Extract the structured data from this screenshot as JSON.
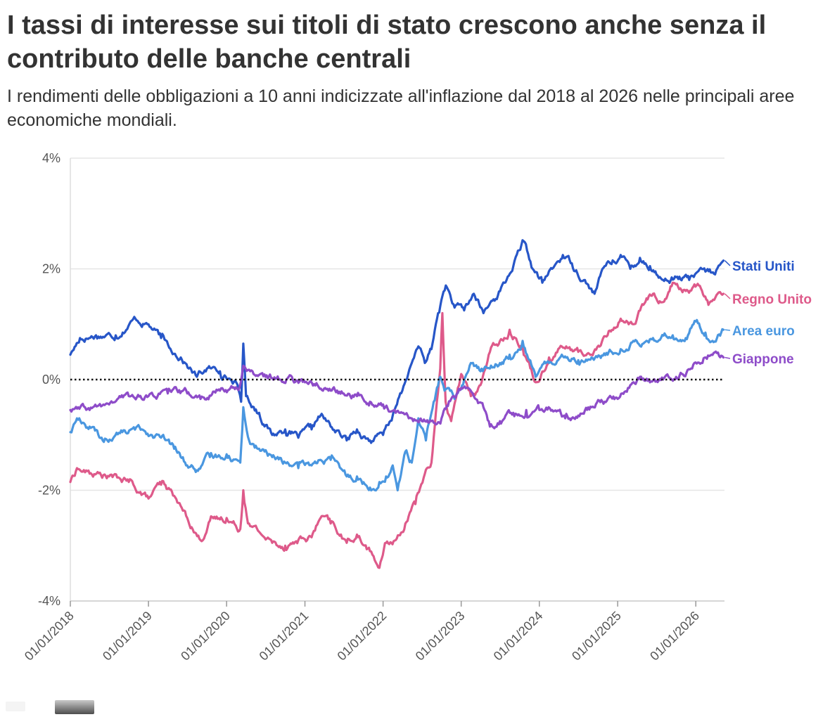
{
  "header": {
    "title": "I tassi di interesse sui titoli di stato crescono anche senza il contributo delle banche centrali",
    "subtitle": "I rendimenti delle obbligazioni a 10 anni indicizzate all'inflazione dal 2018 al 2026 nelle principali aree economiche mondiali."
  },
  "chart_data": {
    "type": "line",
    "title": "I tassi di interesse sui titoli di stato crescono anche senza il contributo delle banche centrali",
    "subtitle": "I rendimenti delle obbligazioni a 10 anni indicizzate all'inflazione dal 2018 al 2026 nelle principali aree economiche mondiali.",
    "xlabel": "",
    "ylabel": "",
    "x_type": "date",
    "xlim": [
      "2018-01-01",
      "2026-05-15"
    ],
    "ylim": [
      -4,
      4
    ],
    "y_ticks": [
      -4,
      -2,
      0,
      2,
      4
    ],
    "y_tick_labels": [
      "-4%",
      "-2%",
      "0%",
      "2%",
      "4%"
    ],
    "x_ticks": [
      "2018-01-01",
      "2019-01-01",
      "2020-01-01",
      "2021-01-01",
      "2022-01-01",
      "2023-01-01",
      "2024-01-01",
      "2025-01-01",
      "2026-01-01"
    ],
    "x_tick_labels": [
      "01/01/2018",
      "01/01/2019",
      "01/01/2020",
      "01/01/2021",
      "01/01/2022",
      "01/01/2023",
      "01/01/2024",
      "01/01/2025",
      "01/01/2026"
    ],
    "grid": true,
    "reference_line": {
      "y": 0,
      "style": "dotted"
    },
    "legend": "direct labels at right end of lines",
    "series": [
      {
        "name": "Stati Uniti",
        "color": "#2756c8",
        "points": [
          [
            "2018-01-01",
            0.45
          ],
          [
            "2018-02-15",
            0.75
          ],
          [
            "2018-05-01",
            0.8
          ],
          [
            "2018-08-01",
            0.8
          ],
          [
            "2018-11-01",
            1.1
          ],
          [
            "2019-01-01",
            1.0
          ],
          [
            "2019-03-01",
            0.75
          ],
          [
            "2019-06-01",
            0.4
          ],
          [
            "2019-08-15",
            0.05
          ],
          [
            "2019-10-01",
            0.2
          ],
          [
            "2019-12-01",
            0.15
          ],
          [
            "2020-02-15",
            -0.05
          ],
          [
            "2020-03-09",
            -0.4
          ],
          [
            "2020-03-19",
            0.65
          ],
          [
            "2020-04-01",
            -0.3
          ],
          [
            "2020-06-01",
            -0.6
          ],
          [
            "2020-08-01",
            -1.0
          ],
          [
            "2020-10-01",
            -0.9
          ],
          [
            "2020-12-01",
            -1.05
          ],
          [
            "2021-02-01",
            -0.9
          ],
          [
            "2021-03-15",
            -0.65
          ],
          [
            "2021-05-01",
            -0.85
          ],
          [
            "2021-07-15",
            -1.1
          ],
          [
            "2021-09-01",
            -0.9
          ],
          [
            "2021-11-01",
            -1.1
          ],
          [
            "2022-01-01",
            -1.0
          ],
          [
            "2022-02-15",
            -0.65
          ],
          [
            "2022-04-01",
            -0.2
          ],
          [
            "2022-05-15",
            0.3
          ],
          [
            "2022-06-15",
            0.6
          ],
          [
            "2022-07-15",
            0.3
          ],
          [
            "2022-08-15",
            0.55
          ],
          [
            "2022-09-15",
            1.2
          ],
          [
            "2022-10-21",
            1.7
          ],
          [
            "2022-12-01",
            1.3
          ],
          [
            "2023-01-15",
            1.25
          ],
          [
            "2023-03-01",
            1.55
          ],
          [
            "2023-04-15",
            1.2
          ],
          [
            "2023-06-01",
            1.45
          ],
          [
            "2023-08-01",
            1.8
          ],
          [
            "2023-10-20",
            2.5
          ],
          [
            "2023-12-01",
            2.0
          ],
          [
            "2024-01-15",
            1.75
          ],
          [
            "2024-03-01",
            2.0
          ],
          [
            "2024-04-20",
            2.25
          ],
          [
            "2024-06-01",
            2.1
          ],
          [
            "2024-08-01",
            1.8
          ],
          [
            "2024-09-15",
            1.55
          ],
          [
            "2024-11-01",
            2.05
          ],
          [
            "2025-01-15",
            2.25
          ],
          [
            "2025-03-01",
            2.0
          ],
          [
            "2025-04-15",
            2.2
          ],
          [
            "2025-06-01",
            2.05
          ],
          [
            "2025-08-01",
            1.8
          ],
          [
            "2025-10-01",
            1.85
          ],
          [
            "2025-12-01",
            1.8
          ],
          [
            "2026-02-15",
            1.95
          ],
          [
            "2026-04-01",
            1.9
          ],
          [
            "2026-05-10",
            2.15
          ]
        ]
      },
      {
        "name": "Regno Unito",
        "color": "#de5a8a",
        "points": [
          [
            "2018-01-01",
            -1.85
          ],
          [
            "2018-02-01",
            -1.6
          ],
          [
            "2018-04-01",
            -1.7
          ],
          [
            "2018-07-01",
            -1.75
          ],
          [
            "2018-10-01",
            -1.85
          ],
          [
            "2019-01-01",
            -2.15
          ],
          [
            "2019-03-01",
            -1.9
          ],
          [
            "2019-05-01",
            -2.1
          ],
          [
            "2019-07-01",
            -2.5
          ],
          [
            "2019-09-01",
            -2.9
          ],
          [
            "2019-10-15",
            -2.55
          ],
          [
            "2020-01-01",
            -2.5
          ],
          [
            "2020-03-05",
            -2.7
          ],
          [
            "2020-03-19",
            -2.0
          ],
          [
            "2020-04-15",
            -2.6
          ],
          [
            "2020-06-01",
            -2.75
          ],
          [
            "2020-08-01",
            -2.95
          ],
          [
            "2020-10-01",
            -3.0
          ],
          [
            "2020-12-01",
            -2.9
          ],
          [
            "2021-02-01",
            -2.85
          ],
          [
            "2021-03-15",
            -2.5
          ],
          [
            "2021-05-01",
            -2.6
          ],
          [
            "2021-07-15",
            -2.95
          ],
          [
            "2021-09-01",
            -2.8
          ],
          [
            "2021-11-01",
            -3.1
          ],
          [
            "2021-12-15",
            -3.4
          ],
          [
            "2022-01-15",
            -2.95
          ],
          [
            "2022-03-01",
            -2.9
          ],
          [
            "2022-04-15",
            -2.6
          ],
          [
            "2022-06-01",
            -2.25
          ],
          [
            "2022-07-15",
            -1.7
          ],
          [
            "2022-08-15",
            -1.5
          ],
          [
            "2022-09-25",
            0.2
          ],
          [
            "2022-10-05",
            1.2
          ],
          [
            "2022-10-20",
            -0.4
          ],
          [
            "2022-11-15",
            -0.75
          ],
          [
            "2023-01-01",
            0.1
          ],
          [
            "2023-02-15",
            -0.3
          ],
          [
            "2023-04-01",
            -0.1
          ],
          [
            "2023-05-15",
            0.5
          ],
          [
            "2023-07-01",
            0.7
          ],
          [
            "2023-08-15",
            0.9
          ],
          [
            "2023-10-15",
            0.6
          ],
          [
            "2023-12-15",
            -0.05
          ],
          [
            "2024-02-15",
            0.4
          ],
          [
            "2024-04-15",
            0.6
          ],
          [
            "2024-07-01",
            0.5
          ],
          [
            "2024-09-01",
            0.45
          ],
          [
            "2024-11-15",
            0.8
          ],
          [
            "2025-01-15",
            1.1
          ],
          [
            "2025-03-15",
            1.0
          ],
          [
            "2025-05-01",
            1.35
          ],
          [
            "2025-06-15",
            1.55
          ],
          [
            "2025-08-01",
            1.4
          ],
          [
            "2025-09-15",
            1.75
          ],
          [
            "2025-11-15",
            1.6
          ],
          [
            "2026-01-15",
            1.7
          ],
          [
            "2026-03-01",
            1.35
          ],
          [
            "2026-05-10",
            1.55
          ]
        ]
      },
      {
        "name": "Area euro",
        "color": "#4a97e0",
        "points": [
          [
            "2018-01-01",
            -0.95
          ],
          [
            "2018-02-01",
            -0.7
          ],
          [
            "2018-04-01",
            -0.85
          ],
          [
            "2018-06-01",
            -1.1
          ],
          [
            "2018-09-01",
            -0.95
          ],
          [
            "2018-12-01",
            -0.9
          ],
          [
            "2019-03-01",
            -1.05
          ],
          [
            "2019-05-01",
            -1.25
          ],
          [
            "2019-07-01",
            -1.55
          ],
          [
            "2019-08-20",
            -1.65
          ],
          [
            "2019-10-15",
            -1.4
          ],
          [
            "2020-01-01",
            -1.35
          ],
          [
            "2020-03-05",
            -1.5
          ],
          [
            "2020-03-19",
            -0.5
          ],
          [
            "2020-04-15",
            -1.1
          ],
          [
            "2020-06-01",
            -1.25
          ],
          [
            "2020-08-01",
            -1.4
          ],
          [
            "2020-10-01",
            -1.5
          ],
          [
            "2020-12-01",
            -1.6
          ],
          [
            "2021-02-01",
            -1.55
          ],
          [
            "2021-03-15",
            -1.45
          ],
          [
            "2021-05-01",
            -1.45
          ],
          [
            "2021-07-15",
            -1.75
          ],
          [
            "2021-09-01",
            -1.75
          ],
          [
            "2021-11-01",
            -1.95
          ],
          [
            "2021-12-15",
            -1.85
          ],
          [
            "2022-01-15",
            -1.75
          ],
          [
            "2022-02-15",
            -1.55
          ],
          [
            "2022-03-10",
            -2.0
          ],
          [
            "2022-04-15",
            -1.3
          ],
          [
            "2022-05-15",
            -1.5
          ],
          [
            "2022-06-15",
            -0.7
          ],
          [
            "2022-07-20",
            -1.1
          ],
          [
            "2022-08-15",
            -0.6
          ],
          [
            "2022-09-25",
            0.05
          ],
          [
            "2022-10-15",
            -0.2
          ],
          [
            "2022-12-01",
            -0.35
          ],
          [
            "2023-01-15",
            0.0
          ],
          [
            "2023-02-15",
            0.3
          ],
          [
            "2023-04-01",
            0.15
          ],
          [
            "2023-05-15",
            0.2
          ],
          [
            "2023-07-01",
            0.3
          ],
          [
            "2023-08-15",
            0.45
          ],
          [
            "2023-10-15",
            0.7
          ],
          [
            "2023-12-15",
            0.05
          ],
          [
            "2024-02-15",
            0.3
          ],
          [
            "2024-04-15",
            0.45
          ],
          [
            "2024-07-01",
            0.35
          ],
          [
            "2024-09-01",
            0.4
          ],
          [
            "2024-11-15",
            0.45
          ],
          [
            "2025-01-15",
            0.55
          ],
          [
            "2025-03-15",
            0.7
          ],
          [
            "2025-05-01",
            0.65
          ],
          [
            "2025-06-15",
            0.75
          ],
          [
            "2025-09-15",
            0.8
          ],
          [
            "2025-11-15",
            0.75
          ],
          [
            "2026-01-01",
            1.05
          ],
          [
            "2026-02-15",
            0.85
          ],
          [
            "2026-03-20",
            0.7
          ],
          [
            "2026-05-10",
            0.9
          ]
        ]
      },
      {
        "name": "Giappone",
        "color": "#8e4cc9",
        "points": [
          [
            "2018-01-01",
            -0.55
          ],
          [
            "2018-04-01",
            -0.55
          ],
          [
            "2018-07-01",
            -0.45
          ],
          [
            "2018-10-01",
            -0.3
          ],
          [
            "2019-01-01",
            -0.3
          ],
          [
            "2019-04-01",
            -0.25
          ],
          [
            "2019-07-01",
            -0.25
          ],
          [
            "2019-09-01",
            -0.35
          ],
          [
            "2019-12-01",
            -0.2
          ],
          [
            "2020-03-01",
            -0.15
          ],
          [
            "2020-03-19",
            0.25
          ],
          [
            "2020-05-01",
            0.15
          ],
          [
            "2020-07-01",
            0.05
          ],
          [
            "2020-09-01",
            0.0
          ],
          [
            "2020-11-01",
            0.05
          ],
          [
            "2021-01-01",
            -0.05
          ],
          [
            "2021-03-01",
            -0.1
          ],
          [
            "2021-05-01",
            -0.2
          ],
          [
            "2021-07-01",
            -0.25
          ],
          [
            "2021-09-01",
            -0.3
          ],
          [
            "2021-11-01",
            -0.4
          ],
          [
            "2022-01-01",
            -0.45
          ],
          [
            "2022-03-01",
            -0.6
          ],
          [
            "2022-05-01",
            -0.7
          ],
          [
            "2022-07-01",
            -0.75
          ],
          [
            "2022-08-15",
            -0.75
          ],
          [
            "2022-10-01",
            -0.7
          ],
          [
            "2022-11-15",
            -0.35
          ],
          [
            "2023-01-01",
            -0.15
          ],
          [
            "2023-03-01",
            -0.3
          ],
          [
            "2023-04-15",
            -0.5
          ],
          [
            "2023-05-15",
            -0.85
          ],
          [
            "2023-07-01",
            -0.75
          ],
          [
            "2023-09-01",
            -0.6
          ],
          [
            "2023-11-01",
            -0.55
          ],
          [
            "2024-01-01",
            -0.55
          ],
          [
            "2024-03-01",
            -0.55
          ],
          [
            "2024-05-01",
            -0.7
          ],
          [
            "2024-07-01",
            -0.65
          ],
          [
            "2024-09-01",
            -0.5
          ],
          [
            "2024-11-01",
            -0.4
          ],
          [
            "2025-01-01",
            -0.35
          ],
          [
            "2025-03-01",
            -0.1
          ],
          [
            "2025-04-15",
            0.05
          ],
          [
            "2025-06-01",
            -0.05
          ],
          [
            "2025-08-01",
            0.0
          ],
          [
            "2025-10-01",
            0.05
          ],
          [
            "2025-12-15",
            0.2
          ],
          [
            "2026-02-01",
            0.3
          ],
          [
            "2026-03-15",
            0.45
          ],
          [
            "2026-05-10",
            0.4
          ]
        ]
      }
    ]
  }
}
